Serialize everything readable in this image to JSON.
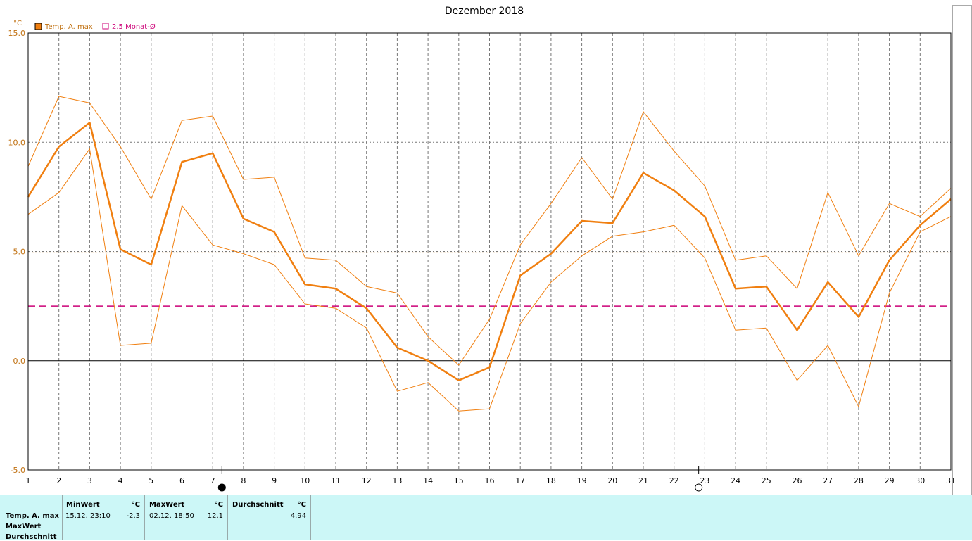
{
  "chart_data": {
    "type": "line",
    "title": "Dezember 2018",
    "y_unit": "°C",
    "ylim": [
      -5.0,
      15.0
    ],
    "y_ticks": [
      "15.0",
      "10.0",
      "5.0",
      "0.0",
      "-5.0"
    ],
    "x": [
      1,
      2,
      3,
      4,
      5,
      6,
      7,
      8,
      9,
      10,
      11,
      12,
      13,
      14,
      15,
      16,
      17,
      18,
      19,
      20,
      21,
      22,
      23,
      24,
      25,
      26,
      27,
      28,
      29,
      30,
      31
    ],
    "x_tick_labels": [
      "1",
      "2",
      "3",
      "4",
      "5",
      "6",
      "7",
      "8",
      "9",
      "10",
      "11",
      "12",
      "13",
      "14",
      "15",
      "16",
      "17",
      "18",
      "19",
      "20",
      "21",
      "22",
      "23",
      "24",
      "25",
      "26",
      "27",
      "28",
      "29",
      "30",
      "31"
    ],
    "legend": [
      {
        "label": "Temp. A. max",
        "color": "#f07f10"
      },
      {
        "label": "2.5 Monat-Ø",
        "color": "#cc0077"
      }
    ],
    "series": [
      {
        "name": "Temp. A. max",
        "color": "#f07f10",
        "values": [
          7.5,
          9.8,
          10.9,
          5.1,
          4.4,
          9.1,
          9.5,
          6.5,
          5.9,
          3.5,
          3.3,
          2.4,
          0.6,
          0.0,
          -0.9,
          -0.3,
          3.9,
          4.9,
          6.4,
          6.3,
          8.6,
          7.8,
          6.6,
          3.3,
          3.4,
          1.4,
          3.6,
          2.0,
          4.6,
          6.2,
          7.4
        ]
      },
      {
        "name": "upper",
        "color": "#f07f10",
        "values": [
          8.9,
          12.1,
          11.8,
          9.8,
          7.4,
          11.0,
          11.2,
          8.3,
          8.4,
          4.7,
          4.6,
          3.4,
          3.1,
          1.1,
          -0.2,
          1.9,
          5.3,
          7.2,
          9.3,
          7.4,
          11.4,
          9.6,
          8.0,
          4.6,
          4.8,
          3.3,
          7.7,
          4.8,
          7.2,
          6.6,
          7.9
        ]
      },
      {
        "name": "lower",
        "color": "#f07f10",
        "values": [
          6.7,
          7.7,
          9.7,
          0.7,
          0.8,
          7.1,
          5.3,
          4.9,
          4.4,
          2.6,
          2.4,
          1.5,
          -1.4,
          -1.0,
          -2.3,
          -2.2,
          1.7,
          3.6,
          4.8,
          5.7,
          5.9,
          6.2,
          4.7,
          1.4,
          1.5,
          -0.9,
          0.7,
          -2.1,
          3.1,
          5.9,
          6.6
        ]
      }
    ],
    "hlines": [
      {
        "value": 4.94,
        "color": "#c07010",
        "style": "dashed"
      },
      {
        "value": 2.5,
        "color": "#cc0077",
        "style": "dashed"
      }
    ],
    "moon_markers": [
      {
        "position": 7.3,
        "phase": "new"
      },
      {
        "position": 22.8,
        "phase": "full"
      }
    ],
    "grid": true
  },
  "stats": {
    "row_labels": [
      "Temp. A. max",
      "MaxWert",
      "Durchschnitt"
    ],
    "min_header": "MinWert",
    "min_unit": "°C",
    "min_time": "15.12.  23:10",
    "min_value": "-2.3",
    "max_header": "MaxWert",
    "max_unit": "°C",
    "max_time": "02.12.  18:50",
    "max_value": "12.1",
    "avg_header": "Durchschnitt",
    "avg_unit": "°C",
    "avg_value": "4.94"
  }
}
